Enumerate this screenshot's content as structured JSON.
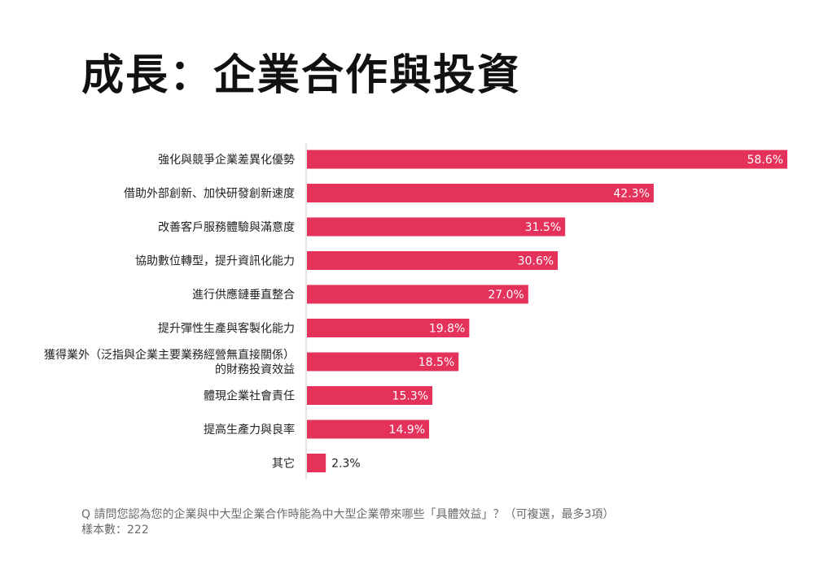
{
  "title": "成長：企業合作與投資",
  "chart_data": {
    "type": "bar",
    "orientation": "horizontal",
    "bar_color": "#e5325a",
    "categories": [
      [
        "強化與競爭企業差異化優勢"
      ],
      [
        "借助外部創新、加快研發創新速度"
      ],
      [
        "改善客戶服務體驗與滿意度"
      ],
      [
        "協助數位轉型，提升資訊化能力"
      ],
      [
        "進行供應鏈垂直整合"
      ],
      [
        "提升彈性生產與客製化能力"
      ],
      [
        "獲得業外（泛指與企業主要業務經營無直接關係）",
        "的財務投資效益"
      ],
      [
        "體現企業社會責任"
      ],
      [
        "提高生產力與良率"
      ],
      [
        "其它"
      ]
    ],
    "values": [
      58.6,
      42.3,
      31.5,
      30.6,
      27.0,
      19.8,
      18.5,
      15.3,
      14.9,
      2.3
    ],
    "value_labels": [
      "58.6%",
      "42.3%",
      "31.5%",
      "30.6%",
      "27.0%",
      "19.8%",
      "18.5%",
      "15.3%",
      "14.9%",
      "2.3%"
    ],
    "xlim": [
      0,
      58.6
    ],
    "grid": false,
    "legend": "none"
  },
  "footer": {
    "question": "Q 請問您認為您的企業與中大型企業合作時能為中大型企業帶來哪些「具體效益」？（可複選，最多3項）",
    "sample": "樣本數：222"
  }
}
